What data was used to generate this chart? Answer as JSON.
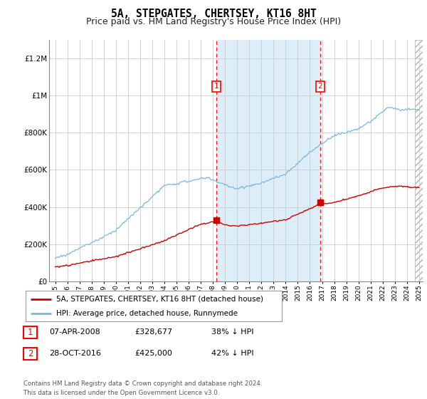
{
  "title": "5A, STEPGATES, CHERTSEY, KT16 8HT",
  "subtitle": "Price paid vs. HM Land Registry's House Price Index (HPI)",
  "ylabel_ticks": [
    "£0",
    "£200K",
    "£400K",
    "£600K",
    "£800K",
    "£1M",
    "£1.2M"
  ],
  "ylim": [
    0,
    1300000
  ],
  "yticks": [
    0,
    200000,
    400000,
    600000,
    800000,
    1000000,
    1200000
  ],
  "sale1_date": 2008.27,
  "sale1_price": 328677,
  "sale1_label": "1",
  "sale2_date": 2016.83,
  "sale2_price": 425000,
  "sale2_label": "2",
  "hpi_color": "#7ab8d9",
  "price_color": "#cc0000",
  "background_color": "#ffffff",
  "grid_color": "#cccccc",
  "highlight_color": "#ddeef8",
  "hatch_start": 2024.67,
  "xlim_left": 1994.5,
  "xlim_right": 2025.3,
  "legend_label1": "5A, STEPGATES, CHERTSEY, KT16 8HT (detached house)",
  "legend_label2": "HPI: Average price, detached house, Runnymede",
  "table_row1": [
    "1",
    "07-APR-2008",
    "£328,677",
    "38% ↓ HPI"
  ],
  "table_row2": [
    "2",
    "28-OCT-2016",
    "£425,000",
    "42% ↓ HPI"
  ],
  "footnote": "Contains HM Land Registry data © Crown copyright and database right 2024.\nThis data is licensed under the Open Government Licence v3.0.",
  "title_fontsize": 10.5,
  "subtitle_fontsize": 9
}
